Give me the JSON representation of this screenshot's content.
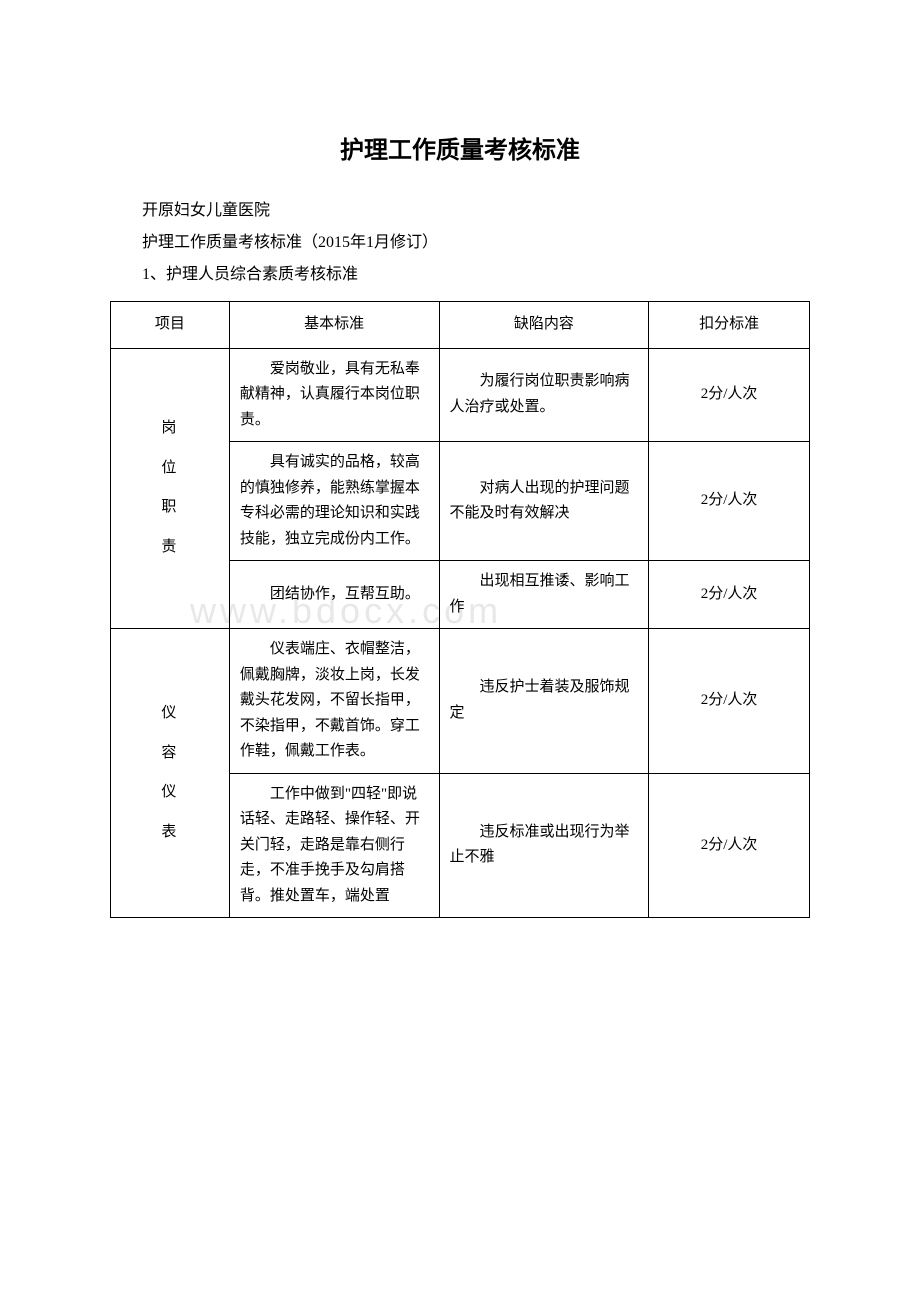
{
  "title": "护理工作质量考核标准",
  "intro": {
    "line1": "开原妇女儿童医院",
    "line2": "护理工作质量考核标准（2015年1月修订）",
    "line3": "1、护理人员综合素质考核标准"
  },
  "watermark": "www.bdocx.com",
  "table": {
    "headers": {
      "col1": "项目",
      "col2": "基本标准",
      "col3": "缺陷内容",
      "col4": "扣分标准"
    },
    "category1": "岗位职责",
    "category2": "仪容仪表",
    "rows": [
      {
        "standard": "爱岗敬业，具有无私奉献精神，认真履行本岗位职责。",
        "defect": "为履行岗位职责影响病人治疗或处置。",
        "deduct": "2分/人次"
      },
      {
        "standard": "具有诚实的品格，较高的慎独修养，能熟练掌握本专科必需的理论知识和实践技能，独立完成份内工作。",
        "defect": "对病人出现的护理问题不能及时有效解决",
        "deduct": "2分/人次"
      },
      {
        "standard": "团结协作，互帮互助。",
        "defect": "出现相互推诿、影响工作",
        "deduct": "2分/人次"
      },
      {
        "standard": "仪表端庄、衣帽整洁，佩戴胸牌，淡妆上岗，长发戴头花发网，不留长指甲，不染指甲，不戴首饰。穿工作鞋，佩戴工作表。",
        "defect": "违反护士着装及服饰规定",
        "deduct": "2分/人次"
      },
      {
        "standard": "工作中做到\"四轻\"即说话轻、走路轻、操作轻、开关门轻，走路是靠右侧行走，不准手挽手及勾肩搭背。推处置车，端处置",
        "defect": "违反标准或出现行为举止不雅",
        "deduct": "2分/人次"
      }
    ]
  }
}
